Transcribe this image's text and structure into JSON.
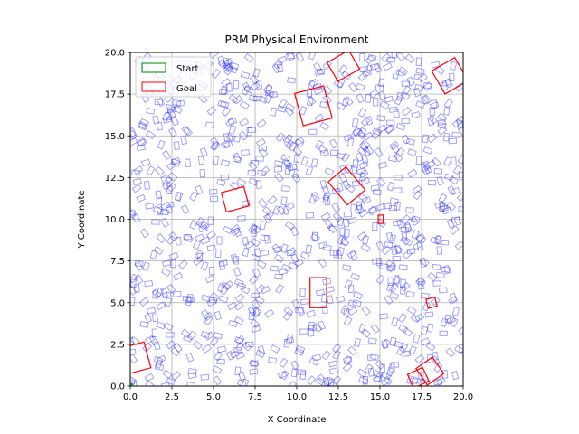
{
  "chart_data": {
    "type": "scatter",
    "title": "PRM Physical Environment",
    "xlabel": "X Coordinate",
    "ylabel": "Y Coordinate",
    "xlim": [
      0,
      20
    ],
    "ylim": [
      0,
      20
    ],
    "xticks": [
      "0.0",
      "2.5",
      "5.0",
      "7.5",
      "10.0",
      "12.5",
      "15.0",
      "17.5",
      "20.0"
    ],
    "yticks": [
      "0.0",
      "2.5",
      "5.0",
      "7.5",
      "10.0",
      "12.5",
      "15.0",
      "17.5",
      "20.0"
    ],
    "grid": true,
    "legend": {
      "placement": "top-left",
      "entries": [
        {
          "label": "Start",
          "color": "#008000"
        },
        {
          "label": "Goal",
          "color": "#ff0000"
        }
      ]
    },
    "colors": {
      "small_obstacles": "#0000ff",
      "large_obstacles": "#ff0000",
      "start": "#008000",
      "grid": "#b0b0b0"
    },
    "start": {
      "x": 0.0,
      "y": 0.0
    },
    "obstacle_field": {
      "count": 900,
      "size_w": 0.45,
      "size_h": 0.28
    },
    "large_obstacles": [
      {
        "cx": 11.0,
        "cy": 16.8,
        "w": 1.8,
        "h": 2.0,
        "angle": 15
      },
      {
        "cx": 12.8,
        "cy": 19.2,
        "w": 1.5,
        "h": 1.3,
        "angle": 30
      },
      {
        "cx": 19.2,
        "cy": 18.6,
        "w": 1.6,
        "h": 1.6,
        "angle": 30
      },
      {
        "cx": 13.0,
        "cy": 12.0,
        "w": 1.4,
        "h": 1.8,
        "angle": 40
      },
      {
        "cx": 6.3,
        "cy": 11.2,
        "w": 1.4,
        "h": 1.2,
        "angle": 15
      },
      {
        "cx": 15.05,
        "cy": 10.0,
        "w": 0.3,
        "h": 0.5,
        "angle": 0
      },
      {
        "cx": 11.3,
        "cy": 5.6,
        "w": 1.0,
        "h": 1.8,
        "angle": 0
      },
      {
        "cx": 18.1,
        "cy": 5.0,
        "w": 0.55,
        "h": 0.55,
        "angle": 15
      },
      {
        "cx": 0.4,
        "cy": 1.7,
        "w": 1.3,
        "h": 1.6,
        "angle": 15
      },
      {
        "cx": 18.0,
        "cy": 0.9,
        "w": 1.2,
        "h": 1.2,
        "angle": 35
      },
      {
        "cx": 17.3,
        "cy": 0.5,
        "w": 1.0,
        "h": 0.9,
        "angle": 25
      }
    ]
  }
}
